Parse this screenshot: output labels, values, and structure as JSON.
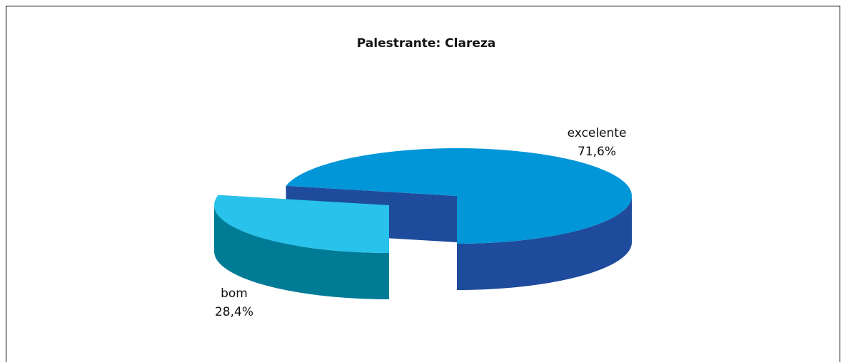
{
  "chart_data": {
    "type": "pie3d",
    "title": "Palestrante: Clareza",
    "categories": [
      "excelente",
      "bom"
    ],
    "values": [
      71.6,
      28.4
    ],
    "value_labels": [
      "71,6%",
      "28,4%"
    ],
    "colors": [
      "#0096d8",
      "#28c2ea"
    ],
    "side_colors": [
      "#1f4b9c",
      "#007b96"
    ]
  }
}
